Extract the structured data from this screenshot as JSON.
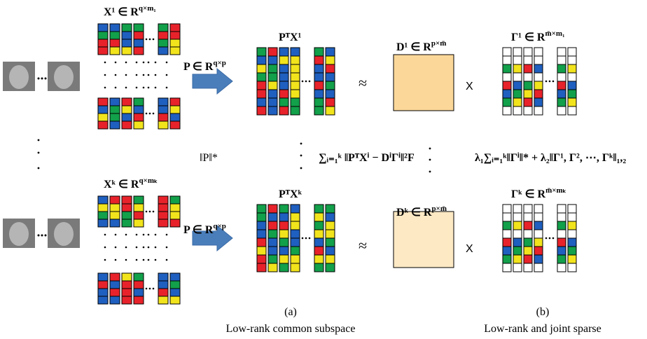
{
  "top": {
    "x_label": {
      "base": "X¹ ∈ R",
      "sup": "q×m₁"
    },
    "p_label": {
      "base": "P ∈ R",
      "sup": "q×p"
    },
    "px_label": "PᵀX¹",
    "approx": "≈",
    "d_label": {
      "base": "D¹ ∈ R",
      "sup": "p×m̄"
    },
    "times": "X",
    "g_label": {
      "base": "Γ¹ ∈ R",
      "sup": "m̄×m₁"
    }
  },
  "middle": {
    "nuclear": "‖P‖*",
    "fidelity": "∑ᵢ₌₁ᵏ ‖PᵀXⁱ − DⁱΓⁱ‖²F",
    "regularizer": "λ₁∑ᵢ₌₁ᵏ‖Γⁱ‖* + λ₂‖Γ¹, Γ², ⋯, Γᵏ‖₁,₂"
  },
  "bottom": {
    "x_label": {
      "base": "Xᵏ ∈ R",
      "sup": "q×mₖ"
    },
    "p_label": {
      "base": "P ∈ R",
      "sup": "q×p"
    },
    "px_label": "PᵀXᵏ",
    "approx": "≈",
    "d_label": {
      "base": "Dᵏ ∈ R",
      "sup": "p×m̄"
    },
    "times": "X",
    "g_label": {
      "base": "Γᵏ ∈ R",
      "sup": "m̄×mₖ"
    }
  },
  "captions": {
    "a": "(a)",
    "a_text": "Low-rank common subspace",
    "b": "(b)",
    "b_text": "Low-rank and joint sparse"
  }
}
